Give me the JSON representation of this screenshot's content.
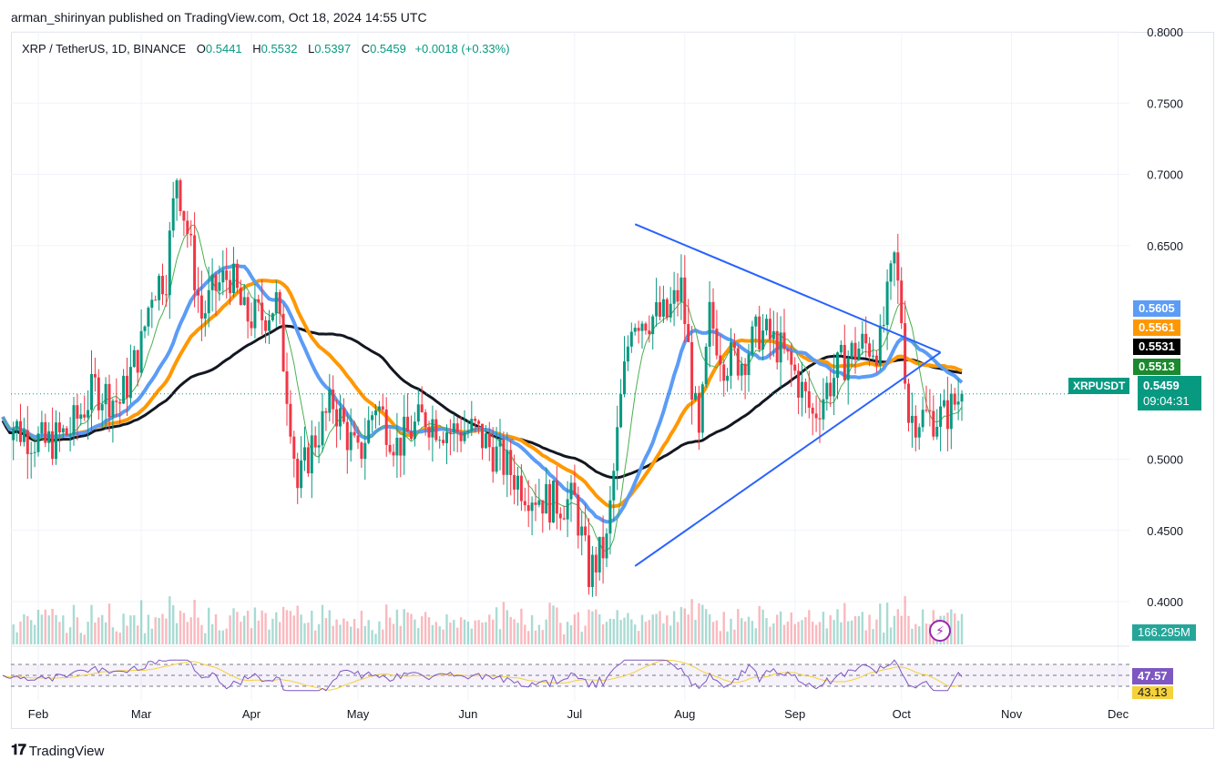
{
  "header": {
    "published": "arman_shirinyan published on TradingView.com, Oct 18, 2024 14:55 UTC"
  },
  "legend": {
    "symbol": "XRP / TetherUS, 1D, BINANCE",
    "o_label": "O",
    "o_value": "0.5441",
    "h_label": "H",
    "h_value": "0.5532",
    "l_label": "L",
    "l_value": "0.5397",
    "c_label": "C",
    "c_value": "0.5459",
    "change": "+0.0018 (+0.33%)"
  },
  "price_tags": {
    "blue": "0.5605",
    "orange": "0.5561",
    "black": "0.5531",
    "green": "0.5513",
    "symbol": "XRPUSDT",
    "last": "0.5459",
    "countdown": "09:04:31",
    "volume": "166.295M",
    "rsi": "47.57",
    "rsi_ma": "43.13"
  },
  "colors": {
    "up": "#089981",
    "down": "#f23645",
    "ma_blue": "#5b9cf6",
    "ma_orange": "#ff9800",
    "ma_black": "#131722",
    "ma_green": "#4caf50",
    "trend": "#2962ff",
    "rsi": "#7e57c2",
    "rsi_ma": "#f5d13a"
  },
  "footer": {
    "brand": "TradingView",
    "logo": "TV-logo-icon"
  },
  "chart_data": {
    "type": "candlestick",
    "ylim": [
      0.37,
      0.8
    ],
    "y_ticks": [
      "0.8000",
      "0.7500",
      "0.7000",
      "0.6500",
      "0.5000",
      "0.4500",
      "0.4000"
    ],
    "x_ticks": [
      "Feb",
      "Mar",
      "Apr",
      "May",
      "Jun",
      "Jul",
      "Aug",
      "Sep",
      "Oct",
      "Nov",
      "Dec"
    ],
    "tick_dates": [
      "2024-02-01",
      "2024-03-01",
      "2024-04-01",
      "2024-05-01",
      "2024-06-01",
      "2024-07-01",
      "2024-08-01",
      "2024-09-01",
      "2024-10-01",
      "2024-11-01",
      "2024-12-01"
    ],
    "series_closes": {
      "start": "2024-01-22",
      "end": "2024-10-18",
      "anchors": [
        [
          "2024-01-22",
          0.53
        ],
        [
          "2024-01-27",
          0.52
        ],
        [
          "2024-02-03",
          0.51
        ],
        [
          "2024-02-10",
          0.52
        ],
        [
          "2024-02-17",
          0.55
        ],
        [
          "2024-02-24",
          0.54
        ],
        [
          "2024-03-01",
          0.58
        ],
        [
          "2024-03-04",
          0.62
        ],
        [
          "2024-03-08",
          0.63
        ],
        [
          "2024-03-11",
          0.7
        ],
        [
          "2024-03-14",
          0.66
        ],
        [
          "2024-03-18",
          0.6
        ],
        [
          "2024-03-22",
          0.62
        ],
        [
          "2024-03-26",
          0.63
        ],
        [
          "2024-03-30",
          0.6
        ],
        [
          "2024-04-04",
          0.6
        ],
        [
          "2024-04-08",
          0.61
        ],
        [
          "2024-04-12",
          0.53
        ],
        [
          "2024-04-14",
          0.48
        ],
        [
          "2024-04-18",
          0.51
        ],
        [
          "2024-04-24",
          0.54
        ],
        [
          "2024-05-01",
          0.5
        ],
        [
          "2024-05-06",
          0.54
        ],
        [
          "2024-05-12",
          0.51
        ],
        [
          "2024-05-20",
          0.53
        ],
        [
          "2024-05-27",
          0.52
        ],
        [
          "2024-06-03",
          0.52
        ],
        [
          "2024-06-10",
          0.5
        ],
        [
          "2024-06-17",
          0.48
        ],
        [
          "2024-06-24",
          0.47
        ],
        [
          "2024-07-01",
          0.47
        ],
        [
          "2024-07-05",
          0.42
        ],
        [
          "2024-07-10",
          0.44
        ],
        [
          "2024-07-14",
          0.54
        ],
        [
          "2024-07-17",
          0.6
        ],
        [
          "2024-07-22",
          0.6
        ],
        [
          "2024-07-27",
          0.6
        ],
        [
          "2024-07-31",
          0.62
        ],
        [
          "2024-08-05",
          0.51
        ],
        [
          "2024-08-08",
          0.6
        ],
        [
          "2024-08-12",
          0.57
        ],
        [
          "2024-08-17",
          0.57
        ],
        [
          "2024-08-22",
          0.59
        ],
        [
          "2024-08-27",
          0.58
        ],
        [
          "2024-09-01",
          0.56
        ],
        [
          "2024-09-06",
          0.53
        ],
        [
          "2024-09-10",
          0.55
        ],
        [
          "2024-09-15",
          0.57
        ],
        [
          "2024-09-20",
          0.58
        ],
        [
          "2024-09-25",
          0.58
        ],
        [
          "2024-09-29",
          0.64
        ],
        [
          "2024-10-01",
          0.6
        ],
        [
          "2024-10-03",
          0.53
        ],
        [
          "2024-10-08",
          0.53
        ],
        [
          "2024-10-13",
          0.53
        ],
        [
          "2024-10-18",
          0.5459
        ]
      ]
    },
    "moving_averages": [
      {
        "name": "",
        "color": "#4caf50",
        "value_last": 0.5513
      },
      {
        "name": "",
        "color": "#5b9cf6",
        "value_last": 0.5605
      },
      {
        "name": "",
        "color": "#ff9800",
        "value_last": 0.5561
      },
      {
        "name": "",
        "color": "#131722",
        "value_last": 0.5531
      }
    ],
    "trendlines": [
      {
        "from": [
          "2024-07-18",
          0.665
        ],
        "to": [
          "2024-10-12",
          0.575
        ]
      },
      {
        "from": [
          "2024-07-18",
          0.425
        ],
        "to": [
          "2024-10-12",
          0.575
        ]
      }
    ],
    "rsi": {
      "last": 47.57,
      "ma_last": 43.13,
      "levels": [
        70,
        50,
        30
      ]
    }
  }
}
